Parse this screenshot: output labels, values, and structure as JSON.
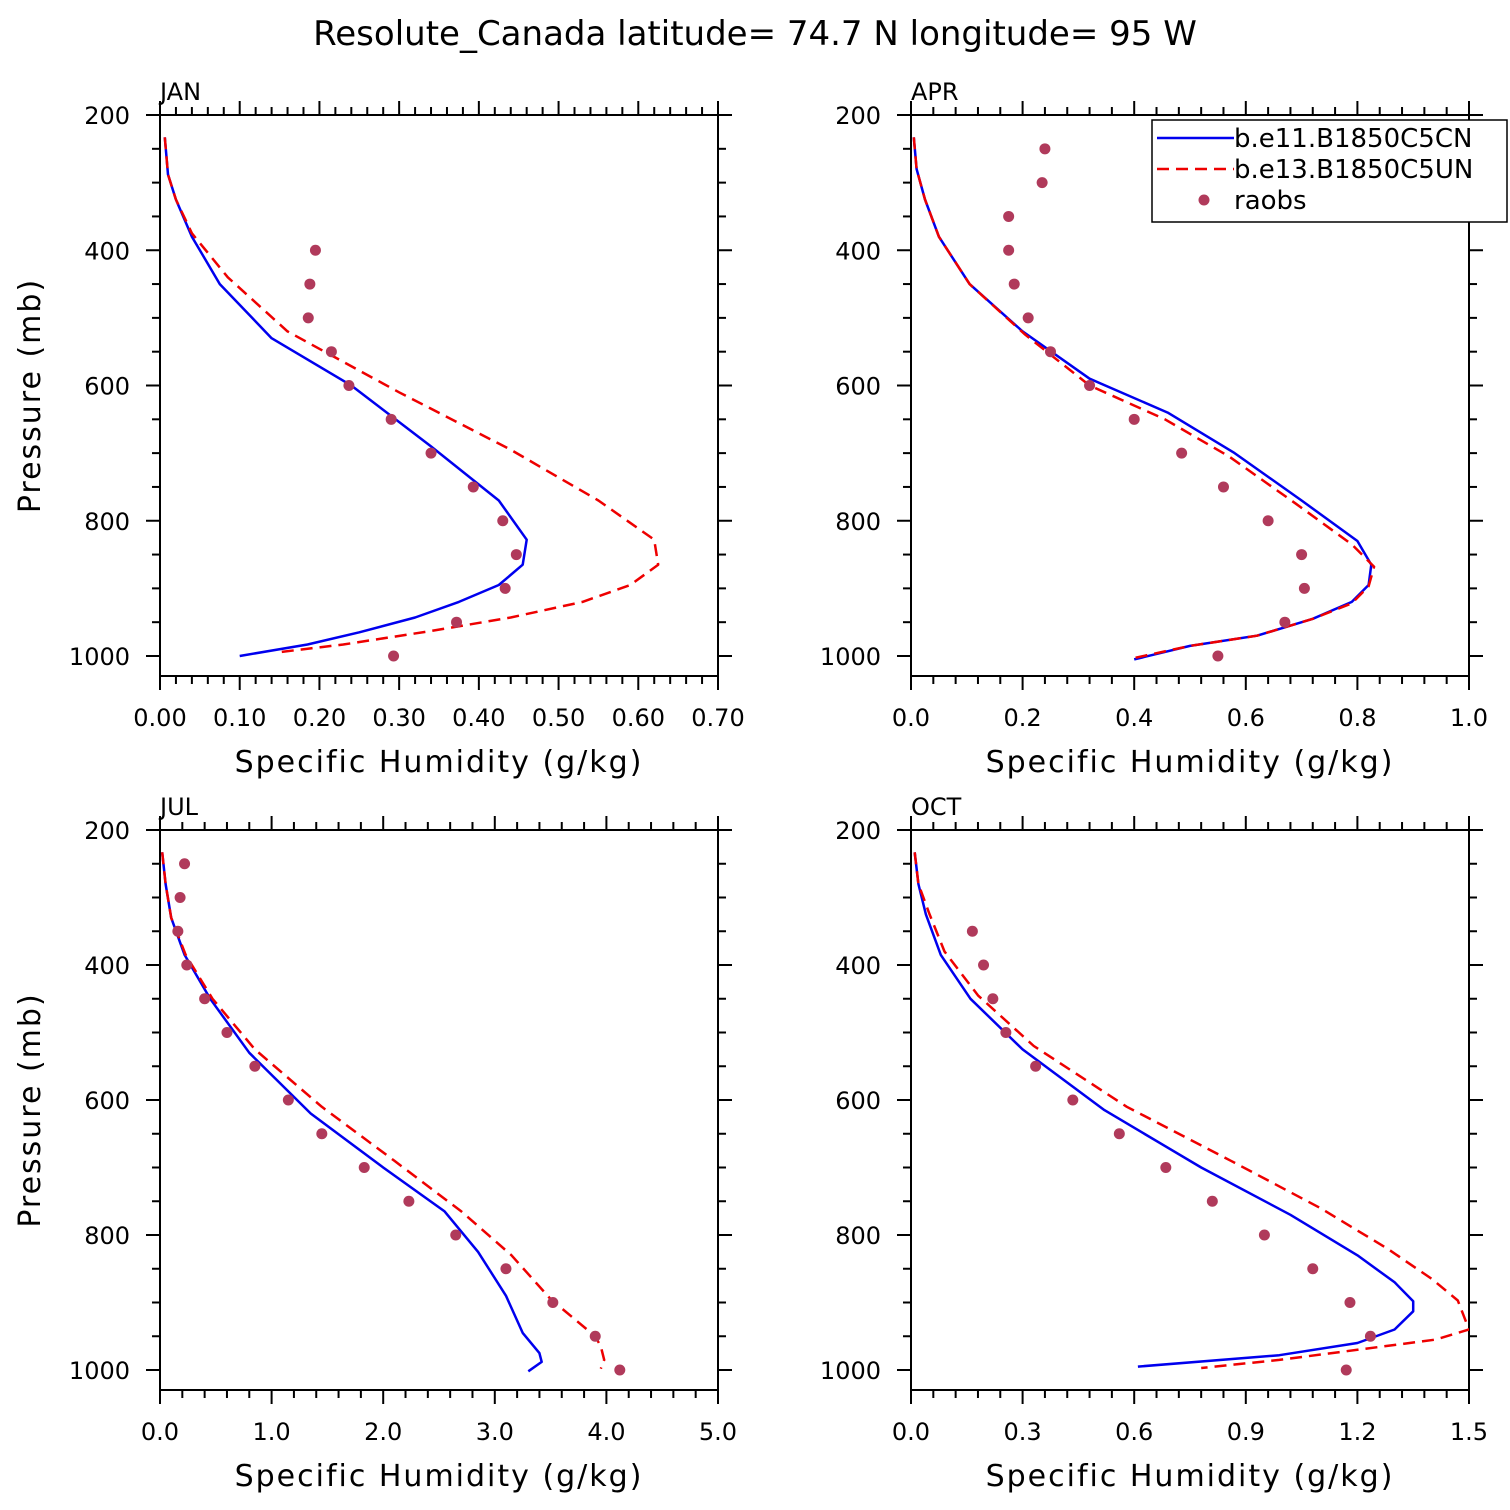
{
  "figure_title": "Resolute_Canada  latitude= 74.7 N longitude= 95 W",
  "legend": {
    "entries": [
      {
        "label": "b.e11.B1850C5CN",
        "color": "#0000ee",
        "style": "solid"
      },
      {
        "label": "b.e13.B1850C5UN",
        "color": "#ee0000",
        "style": "dashed"
      },
      {
        "label": "raobs",
        "color": "#b03a5b",
        "style": "marker"
      }
    ]
  },
  "colors": {
    "model1": "#0000ee",
    "model2": "#ee0000",
    "obs": "#b03a5b"
  },
  "chart_data": [
    {
      "type": "line",
      "title": "JAN",
      "xlabel": "Specific Humidity (g/kg)",
      "ylabel": "Pressure (mb)",
      "xlim": [
        0,
        0.7
      ],
      "ylim": [
        200,
        1000
      ],
      "xticks": [
        0,
        0.1,
        0.2,
        0.3,
        0.4,
        0.5,
        0.6,
        0.7
      ],
      "xtick_labels": [
        "0.00",
        "0.10",
        "0.20",
        "0.30",
        "0.40",
        "0.50",
        "0.60",
        "0.70"
      ],
      "yticks": [
        200,
        400,
        600,
        800,
        1000
      ],
      "ytick_labels": [
        "200",
        "400",
        "600",
        "800",
        "1000"
      ],
      "series": [
        {
          "name": "b.e11.B1850C5CN",
          "x": [
            0.006,
            0.01,
            0.02,
            0.04,
            0.075,
            0.14,
            0.24,
            0.34,
            0.425,
            0.46,
            0.455,
            0.425,
            0.375,
            0.32,
            0.25,
            0.185,
            0.1
          ],
          "y": [
            233,
            288,
            325,
            380,
            450,
            530,
            600,
            690,
            770,
            828,
            865,
            895,
            920,
            943,
            965,
            983,
            1000
          ]
        },
        {
          "name": "b.e13.B1850C5UN",
          "x": [
            0.006,
            0.01,
            0.02,
            0.04,
            0.085,
            0.16,
            0.3,
            0.44,
            0.55,
            0.62,
            0.625,
            0.59,
            0.53,
            0.44,
            0.34,
            0.23,
            0.145
          ],
          "y": [
            233,
            288,
            325,
            375,
            440,
            520,
            610,
            695,
            770,
            828,
            865,
            895,
            920,
            943,
            963,
            983,
            995
          ]
        },
        {
          "name": "raobs",
          "x": [
            0.195,
            0.188,
            0.186,
            0.215,
            0.237,
            0.29,
            0.34,
            0.393,
            0.43,
            0.447,
            0.433,
            0.372,
            0.293
          ],
          "y": [
            400,
            450,
            500,
            550,
            600,
            650,
            700,
            750,
            800,
            850,
            900,
            950,
            1000
          ]
        }
      ]
    },
    {
      "type": "line",
      "title": "APR",
      "xlabel": "Specific Humidity (g/kg)",
      "ylabel": "",
      "xlim": [
        0,
        1.0
      ],
      "ylim": [
        200,
        1000
      ],
      "xticks": [
        0,
        0.2,
        0.4,
        0.6,
        0.8,
        1.0
      ],
      "xtick_labels": [
        "0.0",
        "0.2",
        "0.4",
        "0.6",
        "0.8",
        "1.0"
      ],
      "yticks": [
        200,
        400,
        600,
        800,
        1000
      ],
      "ytick_labels": [
        "200",
        "400",
        "600",
        "800",
        "1000"
      ],
      "series": [
        {
          "name": "b.e11.B1850C5CN",
          "x": [
            0.005,
            0.01,
            0.025,
            0.05,
            0.105,
            0.2,
            0.32,
            0.46,
            0.58,
            0.7,
            0.8,
            0.825,
            0.82,
            0.79,
            0.72,
            0.62,
            0.5,
            0.4
          ],
          "y": [
            233,
            280,
            325,
            380,
            450,
            520,
            590,
            640,
            700,
            770,
            830,
            865,
            895,
            920,
            945,
            970,
            985,
            1005
          ]
        },
        {
          "name": "b.e13.B1850C5UN",
          "x": [
            0.005,
            0.01,
            0.025,
            0.05,
            0.105,
            0.205,
            0.32,
            0.455,
            0.57,
            0.69,
            0.79,
            0.83,
            0.82,
            0.79,
            0.72,
            0.62,
            0.5,
            0.4
          ],
          "y": [
            233,
            280,
            325,
            380,
            450,
            525,
            600,
            650,
            705,
            775,
            835,
            868,
            897,
            922,
            945,
            970,
            985,
            1003
          ]
        },
        {
          "name": "raobs",
          "x": [
            0.24,
            0.235,
            0.175,
            0.175,
            0.185,
            0.21,
            0.25,
            0.32,
            0.4,
            0.485,
            0.56,
            0.64,
            0.7,
            0.705,
            0.67,
            0.55
          ],
          "y": [
            250,
            300,
            350,
            400,
            450,
            500,
            550,
            600,
            650,
            700,
            750,
            800,
            850,
            900,
            950,
            1000
          ]
        }
      ]
    },
    {
      "type": "line",
      "title": "JUL",
      "xlabel": "Specific Humidity (g/kg)",
      "ylabel": "Pressure (mb)",
      "xlim": [
        0,
        5.0
      ],
      "ylim": [
        200,
        1000
      ],
      "xticks": [
        0,
        1,
        2,
        3,
        4,
        5
      ],
      "xtick_labels": [
        "0.0",
        "1.0",
        "2.0",
        "3.0",
        "4.0",
        "5.0"
      ],
      "yticks": [
        200,
        400,
        600,
        800,
        1000
      ],
      "ytick_labels": [
        "200",
        "400",
        "600",
        "800",
        "1000"
      ],
      "series": [
        {
          "name": "b.e11.B1850C5CN",
          "x": [
            0.02,
            0.05,
            0.1,
            0.22,
            0.45,
            0.8,
            1.35,
            2.0,
            2.55,
            2.85,
            3.1,
            3.25,
            3.4,
            3.42,
            3.3
          ],
          "y": [
            233,
            280,
            330,
            385,
            450,
            530,
            620,
            700,
            765,
            825,
            890,
            945,
            975,
            988,
            1002
          ]
        },
        {
          "name": "b.e13.B1850C5UN",
          "x": [
            0.02,
            0.05,
            0.1,
            0.23,
            0.47,
            0.85,
            1.45,
            2.1,
            2.7,
            3.15,
            3.5,
            3.9,
            3.95,
            3.98,
            3.95
          ],
          "y": [
            233,
            280,
            330,
            385,
            450,
            525,
            610,
            690,
            765,
            830,
            895,
            950,
            965,
            985,
            998
          ]
        },
        {
          "name": "raobs",
          "x": [
            0.22,
            0.18,
            0.16,
            0.24,
            0.4,
            0.6,
            0.85,
            1.15,
            1.45,
            1.83,
            2.23,
            2.65,
            3.1,
            3.52,
            3.9,
            4.12
          ],
          "y": [
            250,
            300,
            350,
            400,
            450,
            500,
            550,
            600,
            650,
            700,
            750,
            800,
            850,
            900,
            950,
            1000
          ]
        }
      ]
    },
    {
      "type": "line",
      "title": "OCT",
      "xlabel": "Specific Humidity (g/kg)",
      "ylabel": "",
      "xlim": [
        0,
        1.5
      ],
      "ylim": [
        200,
        1000
      ],
      "xticks": [
        0,
        0.3,
        0.6,
        0.9,
        1.2,
        1.5
      ],
      "xtick_labels": [
        "0.0",
        "0.3",
        "0.6",
        "0.9",
        "1.2",
        "1.5"
      ],
      "yticks": [
        200,
        400,
        600,
        800,
        1000
      ],
      "ytick_labels": [
        "200",
        "400",
        "600",
        "800",
        "1000"
      ],
      "series": [
        {
          "name": "b.e11.B1850C5CN",
          "x": [
            0.01,
            0.02,
            0.04,
            0.08,
            0.16,
            0.3,
            0.52,
            0.78,
            1.02,
            1.2,
            1.3,
            1.35,
            1.35,
            1.3,
            1.2,
            0.99,
            0.61
          ],
          "y": [
            233,
            280,
            325,
            385,
            450,
            525,
            615,
            700,
            770,
            830,
            870,
            898,
            913,
            940,
            960,
            978,
            995
          ]
        },
        {
          "name": "b.e13.B1850C5UN",
          "x": [
            0.01,
            0.02,
            0.05,
            0.09,
            0.18,
            0.33,
            0.58,
            0.86,
            1.1,
            1.28,
            1.4,
            1.47,
            1.5,
            1.41,
            1.2,
            0.99,
            0.78
          ],
          "y": [
            233,
            280,
            325,
            380,
            445,
            520,
            610,
            690,
            760,
            820,
            865,
            897,
            940,
            955,
            970,
            985,
            997
          ]
        },
        {
          "name": "raobs",
          "x": [
            0.165,
            0.195,
            0.22,
            0.255,
            0.335,
            0.435,
            0.56,
            0.685,
            0.81,
            0.95,
            1.08,
            1.18,
            1.235,
            1.17
          ],
          "y": [
            350,
            400,
            450,
            500,
            550,
            600,
            650,
            700,
            750,
            800,
            850,
            900,
            950,
            1000
          ]
        }
      ]
    }
  ]
}
